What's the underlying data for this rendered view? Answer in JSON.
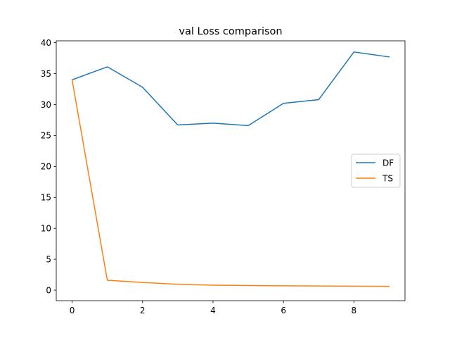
{
  "chart_data": {
    "type": "line",
    "title": "val Loss comparison",
    "xlabel": "",
    "ylabel": "",
    "x": [
      0,
      1,
      2,
      3,
      4,
      5,
      6,
      7,
      8,
      9
    ],
    "xlim": [
      -0.45,
      9.45
    ],
    "ylim": [
      -1.7,
      40.3
    ],
    "xticks": [
      0,
      2,
      4,
      6,
      8
    ],
    "yticks": [
      0,
      5,
      10,
      15,
      20,
      25,
      30,
      35,
      40
    ],
    "grid": false,
    "legend_position": "center-right",
    "series": [
      {
        "name": "DF",
        "color": "#1f77b4",
        "values": [
          34.0,
          36.1,
          32.8,
          26.7,
          27.0,
          26.6,
          30.2,
          30.8,
          38.5,
          37.7
        ]
      },
      {
        "name": "TS",
        "color": "#ff7f0e",
        "values": [
          34.0,
          1.6,
          1.25,
          0.95,
          0.8,
          0.75,
          0.7,
          0.68,
          0.65,
          0.62
        ]
      }
    ]
  }
}
